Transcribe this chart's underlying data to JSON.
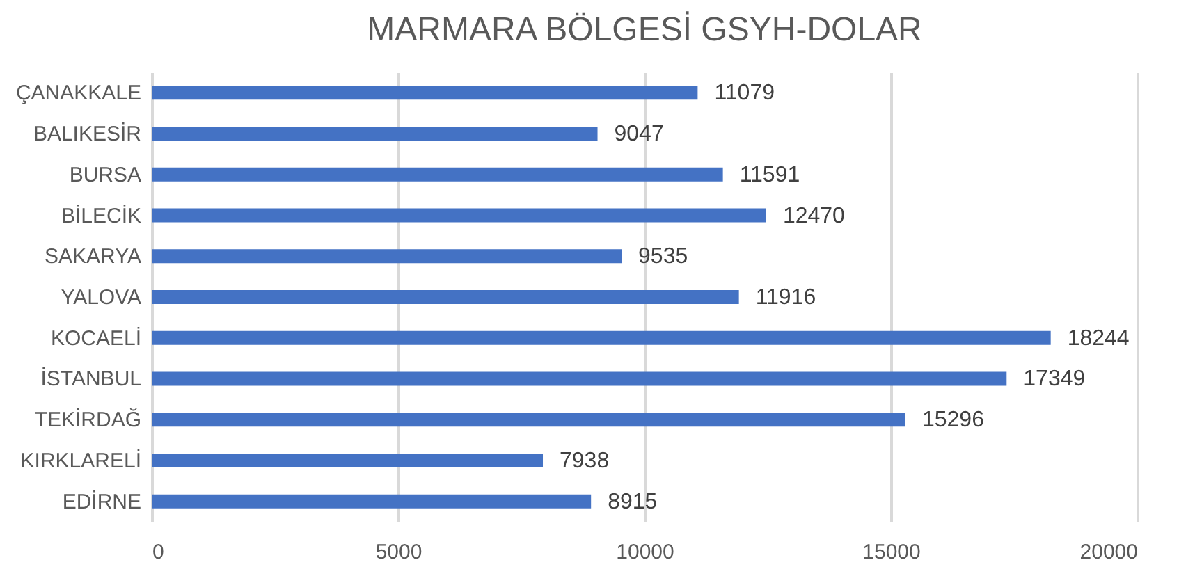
{
  "chart_data": {
    "type": "bar",
    "orientation": "horizontal",
    "title": "MARMARA BÖLGESİ GSYH-DOLAR",
    "categories": [
      "ÇANAKKALE",
      "BALIKESİR",
      "BURSA",
      "BİLECİK",
      "SAKARYA",
      "YALOVA",
      "KOCAELİ",
      "İSTANBUL",
      "TEKİRDAĞ",
      "KIRKLARELİ",
      "EDİRNE"
    ],
    "values": [
      11079,
      9047,
      11591,
      12470,
      9535,
      11916,
      18244,
      17349,
      15296,
      7938,
      8915
    ],
    "color": "#4472c4",
    "xlim": [
      0,
      20000
    ],
    "xticks": [
      0,
      5000,
      10000,
      15000,
      20000
    ],
    "grid": "x",
    "data_labels": true
  }
}
